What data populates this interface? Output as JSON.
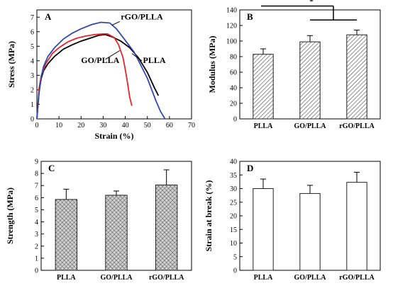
{
  "colors": {
    "PLLA": "#000000",
    "GO/PLLA": "#e8252b",
    "rGO/PLLA": "#3049b0",
    "axis": "#000000",
    "bar_edge": "#333333"
  },
  "chart_data": [
    {
      "panel": "A",
      "type": "line",
      "xlabel": "Strain (%)",
      "ylabel": "Stress (MPa)",
      "xlim": [
        0,
        70
      ],
      "ylim": [
        0,
        7.5
      ],
      "xticks": [
        "0",
        "10",
        "20",
        "30",
        "40",
        "50",
        "60",
        "70"
      ],
      "yticks": [
        "0",
        "1",
        "2",
        "3",
        "4",
        "5",
        "6",
        "7"
      ],
      "grid": false,
      "series": [
        {
          "name": "PLLA",
          "color": "#000000",
          "x": [
            0,
            1,
            2,
            3,
            5,
            8,
            12,
            16,
            20,
            25,
            28,
            31,
            34,
            38,
            42,
            46,
            50,
            53,
            55
          ],
          "y": [
            0,
            1.9,
            2.8,
            3.3,
            3.8,
            4.3,
            4.8,
            5.1,
            5.35,
            5.6,
            5.75,
            5.8,
            5.65,
            5.35,
            4.9,
            4.2,
            3.2,
            2.2,
            1.6
          ]
        },
        {
          "name": "GO/PLLA",
          "color": "#e8252b",
          "x": [
            0,
            1,
            2,
            4,
            7,
            10,
            14,
            18,
            22,
            26,
            30,
            32,
            35,
            37,
            39,
            40,
            41,
            42,
            43
          ],
          "y": [
            0,
            2.1,
            3.0,
            3.8,
            4.5,
            4.9,
            5.3,
            5.55,
            5.7,
            5.8,
            5.85,
            5.85,
            5.6,
            5.1,
            4.2,
            3.4,
            2.5,
            1.5,
            0.9
          ]
        },
        {
          "name": "rGO/PLLA",
          "color": "#3049b0",
          "x": [
            0,
            1,
            2,
            3,
            5,
            8,
            12,
            16,
            20,
            25,
            29,
            33,
            36,
            40,
            44,
            47,
            50,
            52,
            54,
            56,
            58
          ],
          "y": [
            0,
            1.8,
            2.9,
            3.6,
            4.3,
            4.9,
            5.5,
            5.9,
            6.2,
            6.5,
            6.65,
            6.6,
            6.2,
            5.4,
            4.6,
            3.7,
            2.8,
            2.0,
            1.2,
            0.5,
            0
          ]
        }
      ],
      "annotations": [
        {
          "text": "rGO/PLLA",
          "x": 38,
          "y": 6.85
        },
        {
          "text": "GO/PLLA",
          "x": 20,
          "y": 3.85
        },
        {
          "text": "PLLA",
          "x": 48,
          "y": 3.85
        }
      ]
    },
    {
      "panel": "B",
      "type": "bar",
      "ylabel": "Modulus (MPa)",
      "categories": [
        "PLLA",
        "GO/PLLA",
        "rGO/PLLA"
      ],
      "values": [
        83,
        99,
        108
      ],
      "errors": [
        7,
        8,
        6
      ],
      "ylim": [
        0,
        140
      ],
      "yticks": [
        "0",
        "20",
        "40",
        "60",
        "80",
        "100",
        "120",
        "140"
      ],
      "hatch": "diagonal",
      "significance": "*"
    },
    {
      "panel": "C",
      "type": "bar",
      "ylabel": "Strength (MPa)",
      "categories": [
        "PLLA",
        "GO/PLLA",
        "rGO/PLLA"
      ],
      "values": [
        5.85,
        6.2,
        7.05
      ],
      "errors": [
        0.85,
        0.35,
        1.25
      ],
      "ylim": [
        0,
        9
      ],
      "yticks": [
        "0",
        "1",
        "2",
        "3",
        "4",
        "5",
        "6",
        "7",
        "8",
        "9"
      ],
      "hatch": "crosshatch"
    },
    {
      "panel": "D",
      "type": "bar",
      "ylabel": "Strain at break (%)",
      "categories": [
        "PLLA",
        "GO/PLLA",
        "rGO/PLLA"
      ],
      "values": [
        30,
        28.2,
        32.3
      ],
      "errors": [
        3.5,
        3.0,
        3.7
      ],
      "ylim": [
        0,
        40
      ],
      "yticks": [
        "0",
        "5",
        "10",
        "15",
        "20",
        "25",
        "30",
        "35",
        "40"
      ],
      "hatch": "none"
    }
  ]
}
